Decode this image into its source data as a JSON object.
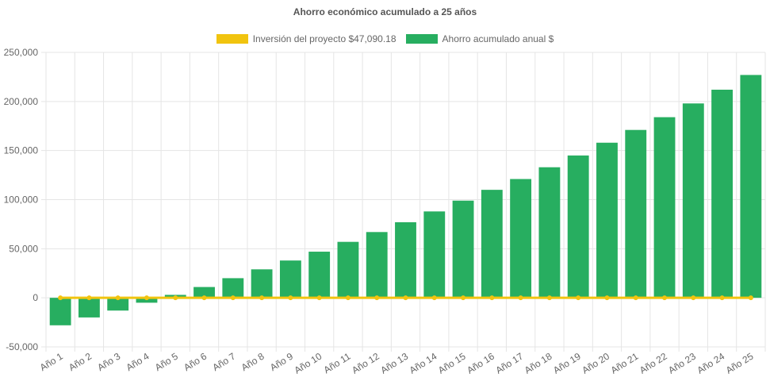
{
  "chart_data": {
    "type": "bar",
    "title": "Ahorro económico acumulado a 25 años",
    "categories": [
      "Año 1",
      "Año 2",
      "Año 3",
      "Año 4",
      "Año 5",
      "Año 6",
      "Año 7",
      "Año 8",
      "Año 9",
      "Año 10",
      "Año 11",
      "Año 12",
      "Año 13",
      "Año 14",
      "Año 15",
      "Año 16",
      "Año 17",
      "Año 18",
      "Año 19",
      "Año 20",
      "Año 21",
      "Año 22",
      "Año 23",
      "Año 24",
      "Año 25"
    ],
    "series": [
      {
        "name": "Inversión del proyecto $47,090.18",
        "type": "line",
        "color": "#f1c40f",
        "values": [
          0,
          0,
          0,
          0,
          0,
          0,
          0,
          0,
          0,
          0,
          0,
          0,
          0,
          0,
          0,
          0,
          0,
          0,
          0,
          0,
          0,
          0,
          0,
          0,
          0
        ]
      },
      {
        "name": "Ahorro acumulado anual $",
        "type": "bar",
        "color": "#27ae60",
        "values": [
          -28000,
          -20000,
          -13000,
          -5000,
          3000,
          11000,
          20000,
          29000,
          38000,
          47000,
          57000,
          67000,
          77000,
          88000,
          99000,
          110000,
          121000,
          133000,
          145000,
          158000,
          171000,
          184000,
          198000,
          212000,
          227000
        ]
      }
    ],
    "ylim": [
      -50000,
      250000
    ],
    "yticks": [
      250000,
      200000,
      150000,
      100000,
      50000,
      0,
      -50000
    ],
    "ytick_labels": [
      "250,000",
      "200,000",
      "150,000",
      "100,000",
      "50,000",
      "0",
      "-50,000"
    ],
    "xlabel": "",
    "ylabel": "",
    "grid": true,
    "legend_position": "top-center"
  }
}
